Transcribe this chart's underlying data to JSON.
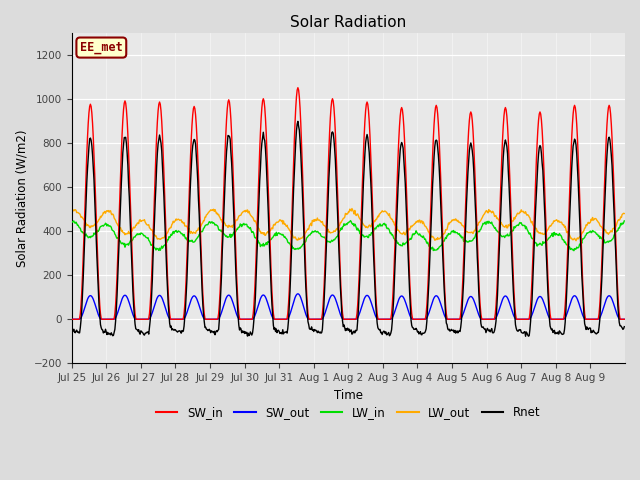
{
  "title": "Solar Radiation",
  "ylabel": "Solar Radiation (W/m2)",
  "xlabel": "Time",
  "ylim": [
    -200,
    1300
  ],
  "yticks": [
    -200,
    0,
    200,
    400,
    600,
    800,
    1000,
    1200
  ],
  "background_color": "#dcdcdc",
  "plot_bg_color": "#e8e8e8",
  "annotation_text": "EE_met",
  "annotation_bg": "#ffffcc",
  "annotation_border": "#8B0000",
  "n_days": 16,
  "colors": {
    "SW_in": "#ff0000",
    "SW_out": "#0000ff",
    "LW_in": "#00dd00",
    "LW_out": "#ffaa00",
    "Rnet": "#000000"
  },
  "legend_labels": [
    "SW_in",
    "SW_out",
    "LW_in",
    "LW_out",
    "Rnet"
  ],
  "tick_labels": [
    "Jul 25",
    "Jul 26",
    "Jul 27",
    "Jul 28",
    "Jul 29",
    "Jul 30",
    "Jul 31",
    "Aug 1",
    "Aug 2",
    "Aug 3",
    "Aug 4",
    "Aug 5",
    "Aug 6",
    "Aug 7",
    "Aug 8",
    "Aug 9"
  ],
  "figsize": [
    6.4,
    4.8
  ],
  "dpi": 100
}
